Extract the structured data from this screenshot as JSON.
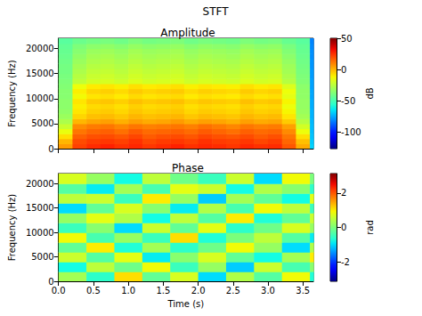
{
  "title": "STFT",
  "chart_data": [
    {
      "type": "heatmap",
      "title": "Amplitude",
      "y_label": "Frequency (Hz)",
      "xlim": [
        0,
        3.65
      ],
      "xticks": [
        {
          "value": 0,
          "label": "0.0"
        },
        0.5,
        {
          "value": 1,
          "label": "1.0"
        },
        1.5,
        {
          "value": 2,
          "label": "2.0"
        },
        2.5,
        {
          "value": 3,
          "label": "3.0"
        },
        3.5
      ],
      "ylim": [
        0,
        22050
      ],
      "yticks": [
        0,
        5000,
        10000,
        15000,
        20000
      ],
      "tick_labels": "y",
      "x_bins": [
        0,
        0.2,
        0.4,
        0.6,
        0.8,
        1,
        1.2,
        1.4,
        1.6,
        1.8,
        2,
        2.2,
        2.4,
        2.6,
        2.8,
        3,
        3.2,
        3.4,
        3.6,
        3.65
      ],
      "y_bins": [
        0,
        1000,
        2000,
        3000,
        4000,
        5000,
        6000,
        7000,
        8000,
        9000,
        10000,
        11000,
        12000,
        13000,
        14000,
        15000,
        16000,
        17000,
        18000,
        19000,
        20000,
        21000,
        22050
      ],
      "cells": [
        [
          5,
          22,
          26,
          28,
          25,
          27,
          24,
          26,
          28,
          25,
          27,
          26,
          24,
          27,
          25,
          26,
          18,
          2,
          -68
        ],
        [
          0,
          20,
          23,
          24,
          22,
          25,
          21,
          23,
          24,
          22,
          25,
          23,
          22,
          24,
          21,
          23,
          15,
          -2,
          -70
        ],
        [
          -8,
          16,
          19,
          20,
          18,
          21,
          17,
          19,
          20,
          18,
          21,
          19,
          18,
          20,
          17,
          19,
          12,
          -8,
          -71
        ],
        [
          -15,
          12,
          15,
          16,
          13,
          17,
          14,
          15,
          16,
          14,
          17,
          15,
          13,
          16,
          14,
          15,
          8,
          -14,
          -72
        ],
        [
          -22,
          8,
          11,
          12,
          9,
          12,
          10,
          11,
          12,
          10,
          13,
          11,
          9,
          12,
          10,
          11,
          4,
          -20,
          -72
        ],
        [
          -28,
          0,
          3,
          4,
          1,
          4,
          2,
          3,
          5,
          2,
          4,
          3,
          1,
          4,
          2,
          3,
          -4,
          -26,
          -73
        ],
        [
          -32,
          -6,
          -2,
          -1,
          -3,
          0,
          -2,
          -1,
          0,
          -3,
          -1,
          -2,
          -3,
          0,
          -2,
          -1,
          -9,
          -30,
          -74
        ],
        [
          -34,
          -9,
          -5,
          -4,
          -6,
          -3,
          -5,
          -4,
          -3,
          -6,
          -4,
          -5,
          -6,
          -3,
          -5,
          -4,
          -12,
          -32,
          -74
        ],
        [
          -35,
          -11,
          -7,
          -6,
          -8,
          -5,
          -7,
          -6,
          -5,
          -8,
          -6,
          -7,
          -8,
          -5,
          -7,
          -6,
          -14,
          -33,
          -75
        ],
        [
          -35,
          -9,
          -4,
          -3,
          -5,
          -2,
          -4,
          -3,
          -2,
          -5,
          -3,
          -4,
          -5,
          -2,
          -4,
          -3,
          -12,
          -33,
          -75
        ],
        [
          -36,
          -13,
          -9,
          -8,
          -10,
          -7,
          -9,
          -8,
          -7,
          -10,
          -8,
          -9,
          -10,
          -7,
          -9,
          -8,
          -16,
          -34,
          -76
        ],
        [
          -36,
          -11,
          -6,
          -5,
          -7,
          -4,
          -6,
          -5,
          -4,
          -7,
          -5,
          -6,
          -7,
          -4,
          -6,
          -5,
          -14,
          -34,
          -76
        ],
        [
          -37,
          -14,
          -10,
          -9,
          -11,
          -8,
          -10,
          -9,
          -8,
          -11,
          -9,
          -10,
          -11,
          -8,
          -10,
          -9,
          -18,
          -35,
          -77
        ],
        [
          -38,
          -24,
          -20,
          -19,
          -21,
          -18,
          -20,
          -19,
          -18,
          -21,
          -19,
          -20,
          -21,
          -18,
          -20,
          -19,
          -26,
          -37,
          -77
        ],
        [
          -39,
          -26,
          -22,
          -21,
          -23,
          -20,
          -22,
          -21,
          -20,
          -23,
          -21,
          -22,
          -23,
          -20,
          -22,
          -21,
          -28,
          -38,
          -78
        ],
        [
          -40,
          -28,
          -24,
          -23,
          -25,
          -22,
          -24,
          -23,
          -22,
          -25,
          -23,
          -24,
          -25,
          -22,
          -24,
          -23,
          -30,
          -39,
          -78
        ],
        [
          -40,
          -30,
          -26,
          -25,
          -27,
          -24,
          -26,
          -25,
          -24,
          -27,
          -25,
          -26,
          -27,
          -24,
          -26,
          -25,
          -31,
          -40,
          -79
        ],
        [
          -41,
          -32,
          -28,
          -27,
          -29,
          -26,
          -28,
          -27,
          -26,
          -29,
          -27,
          -28,
          -29,
          -26,
          -28,
          -27,
          -33,
          -41,
          -79
        ],
        [
          -42,
          -34,
          -30,
          -29,
          -31,
          -28,
          -30,
          -29,
          -28,
          -31,
          -29,
          -30,
          -31,
          -28,
          -30,
          -29,
          -35,
          -42,
          -80
        ],
        [
          -43,
          -36,
          -32,
          -31,
          -33,
          -30,
          -32,
          -31,
          -30,
          -33,
          -31,
          -32,
          -33,
          -30,
          -32,
          -31,
          -37,
          -43,
          -80
        ],
        [
          -44,
          -38,
          -35,
          -34,
          -36,
          -33,
          -35,
          -34,
          -33,
          -36,
          -34,
          -35,
          -36,
          -33,
          -35,
          -34,
          -39,
          -44,
          -81
        ],
        [
          -46,
          -42,
          -40,
          -39,
          -41,
          -38,
          -40,
          -39,
          -38,
          -41,
          -39,
          -40,
          -41,
          -38,
          -40,
          -39,
          -43,
          -46,
          -82
        ]
      ],
      "colorbar": {
        "label": "dB",
        "range": [
          -127,
          50
        ],
        "ticks": [
          -100,
          -50,
          0,
          50
        ]
      }
    },
    {
      "type": "heatmap",
      "title": "Phase",
      "x_label": "Time (s)",
      "y_label": "Frequency (Hz)",
      "xlim": [
        0,
        3.65
      ],
      "xticks": [
        {
          "value": 0,
          "label": "0.0"
        },
        0.5,
        {
          "value": 1,
          "label": "1.0"
        },
        1.5,
        {
          "value": 2,
          "label": "2.0"
        },
        2.5,
        {
          "value": 3,
          "label": "3.0"
        },
        3.5
      ],
      "ylim": [
        0,
        22050
      ],
      "yticks": [
        0,
        5000,
        10000,
        15000,
        20000
      ],
      "x_bins": [
        0,
        0.4,
        0.8,
        1.2,
        1.6,
        2,
        2.4,
        2.8,
        3.2,
        3.6,
        3.65
      ],
      "y_bins": [
        0,
        2000,
        4000,
        6000,
        8000,
        10000,
        12000,
        14000,
        16000,
        18000,
        20000,
        22050
      ],
      "cells": [
        [
          0.3,
          -0.6,
          1.1,
          -0.2,
          0.7,
          -1.0,
          0.4,
          -0.3,
          0.9,
          -0.7
        ],
        [
          -0.8,
          0.5,
          -0.1,
          0.9,
          -0.5,
          0.2,
          -1.1,
          0.6,
          -0.4,
          0.1
        ],
        [
          0.6,
          -0.3,
          0.8,
          -0.9,
          0.1,
          0.7,
          -0.2,
          -0.8,
          0.3,
          1.0
        ],
        [
          -0.2,
          1.0,
          -0.7,
          0.3,
          -0.6,
          -0.1,
          0.9,
          0.2,
          -1.0,
          0.4
        ],
        [
          0.9,
          -0.4,
          0.2,
          -0.5,
          1.1,
          -0.7,
          0.0,
          0.5,
          -0.3,
          -0.9
        ],
        [
          -0.5,
          0.1,
          -1.0,
          0.6,
          -0.2,
          0.8,
          -0.6,
          -0.1,
          0.7,
          0.2
        ],
        [
          0.2,
          0.8,
          0.4,
          -0.8,
          0.5,
          -0.3,
          1.0,
          -0.7,
          -0.2,
          0.6
        ],
        [
          -1.0,
          -0.2,
          0.7,
          0.1,
          -0.9,
          0.4,
          -0.4,
          0.9,
          0.5,
          -0.5
        ],
        [
          0.5,
          0.6,
          -0.5,
          1.0,
          0.2,
          -1.1,
          0.3,
          -0.2,
          -0.8,
          0.8
        ],
        [
          -0.3,
          -0.9,
          0.3,
          -0.4,
          0.8,
          0.6,
          -0.8,
          0.4,
          0.1,
          -0.6
        ],
        [
          0.7,
          0.2,
          -0.8,
          0.5,
          -0.1,
          -0.5,
          0.6,
          -1.0,
          0.9,
          0.0
        ]
      ],
      "colorbar": {
        "label": "rad",
        "range": [
          -3.14159,
          3.14159
        ],
        "ticks": [
          -2,
          0,
          2
        ]
      }
    }
  ]
}
